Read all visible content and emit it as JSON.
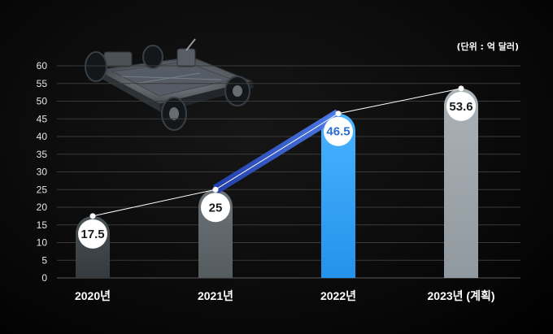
{
  "chart_data": {
    "type": "bar",
    "title": "",
    "unit_note": "(단위 : 억 달러)",
    "xlabel": "",
    "ylabel": "",
    "categories": [
      "2020년",
      "2021년",
      "2022년",
      "2023년 (계획)"
    ],
    "values": [
      17.5,
      25,
      46.5,
      53.6
    ],
    "value_labels": [
      "17.5",
      "25",
      "46.5",
      "53.6"
    ],
    "ylim": [
      0,
      60
    ],
    "yticks": [
      "0",
      "5",
      "10",
      "15",
      "20",
      "25",
      "30",
      "35",
      "40",
      "45",
      "50",
      "55",
      "60"
    ],
    "grid": true,
    "highlight_index": 2,
    "colors": {
      "bar_2020": "#3c4246",
      "bar_2021": "#5f666b",
      "bar_2022": "#2e9cf0",
      "bar_2023": "#9ea6ab",
      "highlight_label": "#2a6fd1",
      "label_text": "#1b1b1b",
      "trend_line": "#ffffff",
      "trend_highlight": "#2f56c8"
    },
    "illustration": "ev-chassis-platform"
  }
}
